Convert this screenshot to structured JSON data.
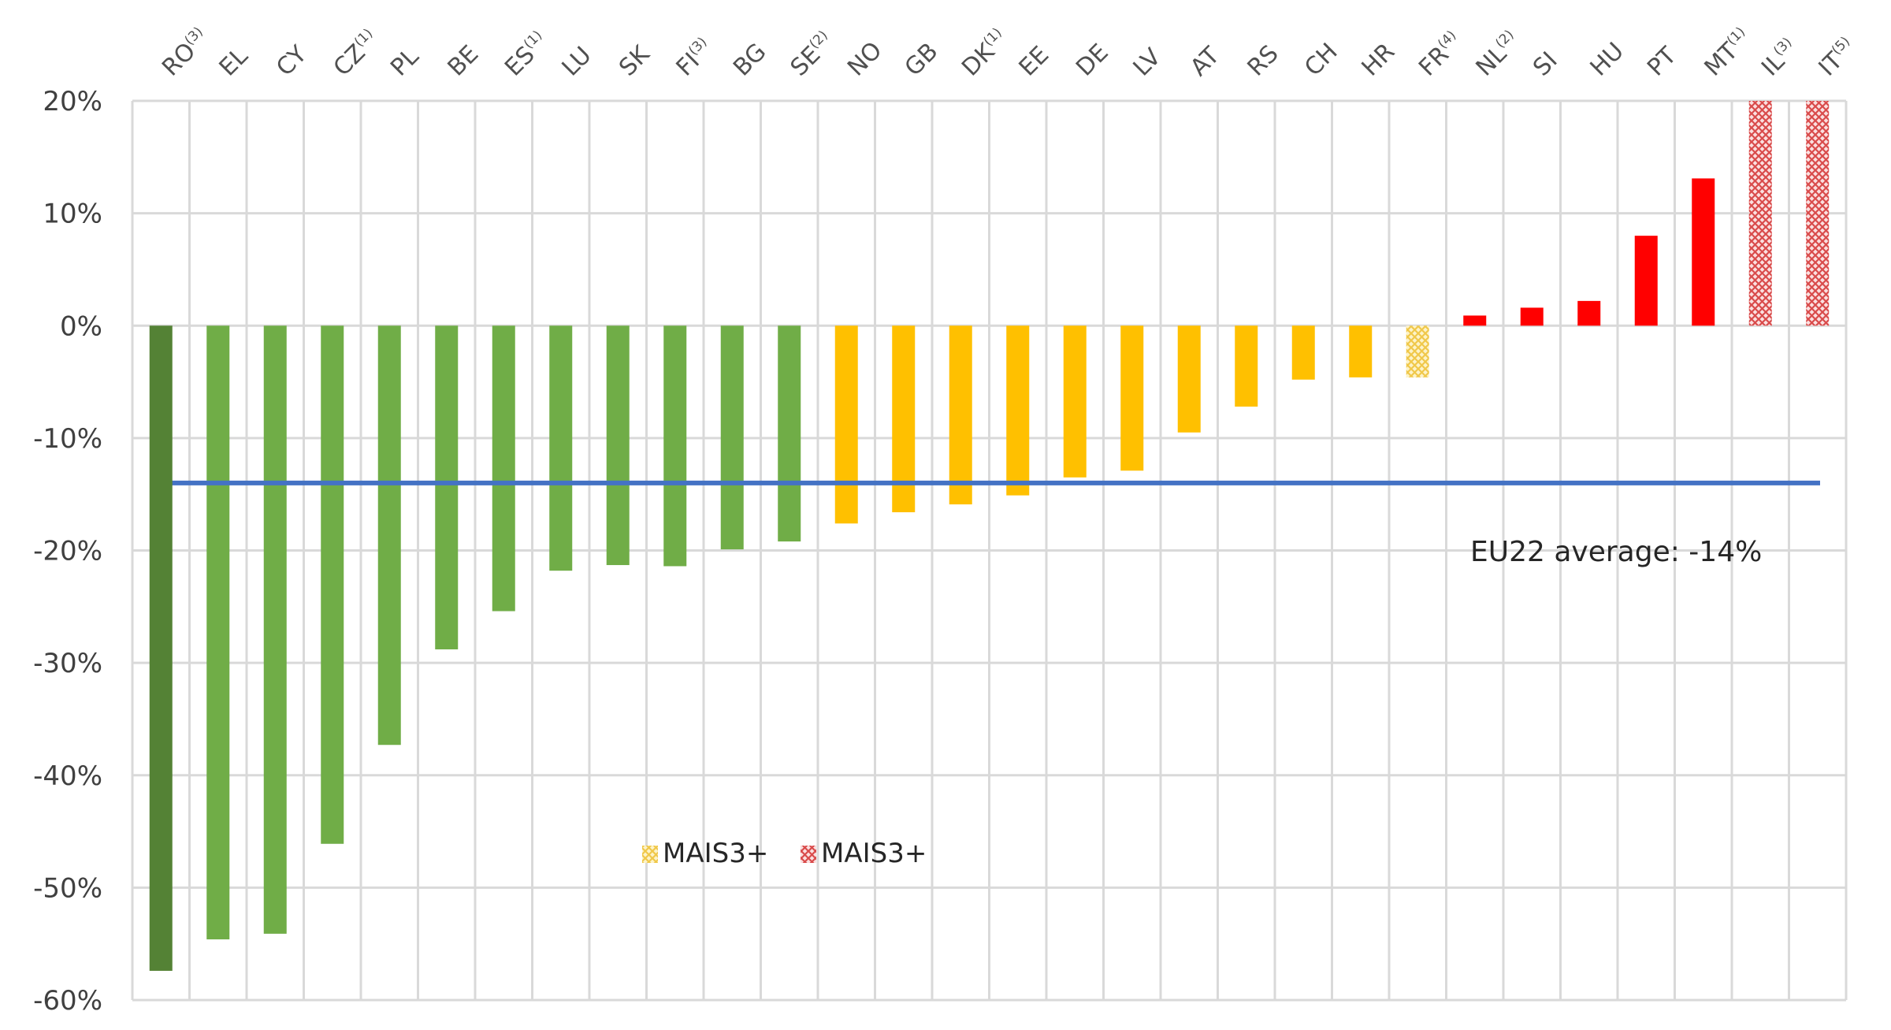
{
  "chart_data": {
    "type": "bar",
    "title": "",
    "xlabel": "",
    "ylabel": "",
    "ylim": [
      -0.6,
      0.2
    ],
    "y_ticks": [
      "20%",
      "10%",
      "0%",
      "-10%",
      "-20%",
      "-30%",
      "-40%",
      "-50%",
      "-60%"
    ],
    "y_tick_values": [
      0.2,
      0.1,
      0.0,
      -0.1,
      -0.2,
      -0.3,
      -0.4,
      -0.5,
      -0.6
    ],
    "grid": true,
    "x_axis_position": "top",
    "x_label_rotation": -45,
    "categories": [
      "RO",
      "EL",
      "CY",
      "CZ",
      "PL",
      "BE",
      "ES",
      "LU",
      "SK",
      "FI",
      "BG",
      "SE",
      "NO",
      "GB",
      "DK",
      "EE",
      "DE",
      "LV",
      "AT",
      "RS",
      "CH",
      "HR",
      "FR",
      "NL",
      "SI",
      "HU",
      "PT",
      "MT",
      "IL",
      "IT"
    ],
    "category_footnotes": [
      "(3)",
      "",
      "",
      "(1)",
      "",
      "",
      "(1)",
      "",
      "",
      "(3)",
      "",
      "(2)",
      "",
      "",
      "(1)",
      "",
      "",
      "",
      "",
      "",
      "",
      "",
      "(4)",
      "(2)",
      "",
      "",
      "",
      "(1)",
      "(3)",
      "(5)"
    ],
    "values": [
      -0.574,
      -0.546,
      -0.541,
      -0.461,
      -0.373,
      -0.288,
      -0.254,
      -0.218,
      -0.213,
      -0.214,
      -0.199,
      -0.192,
      -0.176,
      -0.166,
      -0.159,
      -0.151,
      -0.135,
      -0.129,
      -0.095,
      -0.072,
      -0.048,
      -0.046,
      -0.046,
      0.009,
      0.016,
      0.022,
      0.08,
      0.131,
      0.2,
      0.2
    ],
    "bar_colors": [
      "#548235",
      "#70ad47",
      "#70ad47",
      "#70ad47",
      "#70ad47",
      "#70ad47",
      "#70ad47",
      "#70ad47",
      "#70ad47",
      "#70ad47",
      "#70ad47",
      "#70ad47",
      "#ffc000",
      "#ffc000",
      "#ffc000",
      "#ffc000",
      "#ffc000",
      "#ffc000",
      "#ffc000",
      "#ffc000",
      "#ffc000",
      "#ffc000",
      "#f5d36a",
      "#ff0000",
      "#ff0000",
      "#ff0000",
      "#ff0000",
      "#ff0000",
      "#e87a7a",
      "#e87a7a"
    ],
    "bar_hatched": [
      false,
      false,
      false,
      false,
      false,
      false,
      false,
      false,
      false,
      false,
      false,
      false,
      false,
      false,
      false,
      false,
      false,
      false,
      false,
      false,
      false,
      false,
      true,
      false,
      false,
      false,
      false,
      false,
      true,
      true
    ],
    "bar_note": "IL and IT bars are hatched and extend beyond the 20% axis limit (clipped)",
    "reference_line": {
      "label": "EU22 average: -14%",
      "value": -0.14,
      "color": "#4472c4"
    },
    "legend": [
      {
        "label": "MAIS3+",
        "color": "#f5d36a",
        "pattern": "hatched"
      },
      {
        "label": "MAIS3+",
        "color": "#e87a7a",
        "pattern": "hatched"
      }
    ],
    "legend_position": "inside-lower-left"
  },
  "annotation": {
    "text": "EU22 average: -14%"
  }
}
